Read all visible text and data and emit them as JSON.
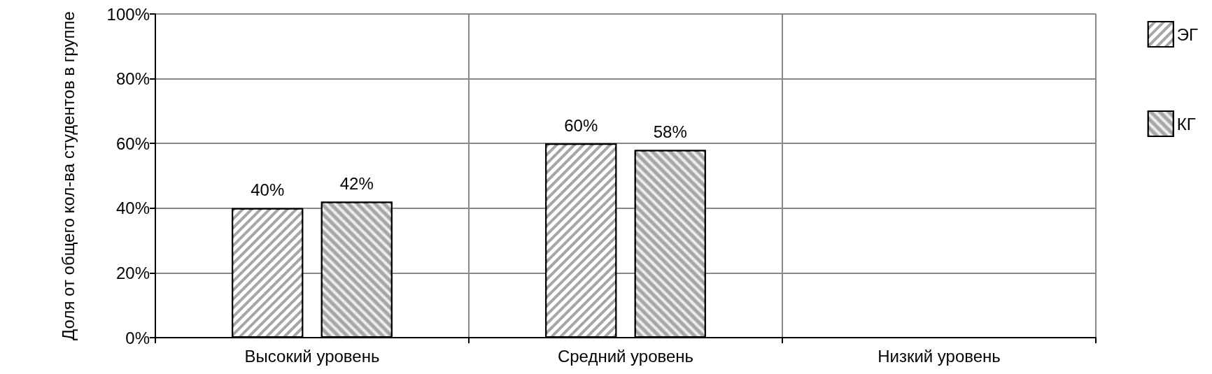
{
  "chart_data": {
    "type": "bar",
    "ylabel": "Доля от общего кол-ва студентов в группе",
    "categories": [
      "Высокий уровень",
      "Средний уровень",
      "Низкий уровень"
    ],
    "series": [
      {
        "name": "ЭГ",
        "color": "#a6a6a6",
        "values": [
          40,
          60,
          null
        ],
        "value_labels": [
          "40%",
          "60%",
          null
        ]
      },
      {
        "name": "КГ",
        "color": "#a6a6a6",
        "values": [
          42,
          58,
          null
        ],
        "value_labels": [
          "42%",
          "58%",
          null
        ]
      }
    ],
    "ylim": [
      0,
      100
    ],
    "yticks": [
      {
        "value": 0,
        "label": "0%"
      },
      {
        "value": 20,
        "label": "20%"
      },
      {
        "value": 40,
        "label": "40%"
      },
      {
        "value": 60,
        "label": "60%"
      },
      {
        "value": 80,
        "label": "80%"
      },
      {
        "value": 100,
        "label": "100%"
      }
    ],
    "grid": true,
    "legend": "right"
  }
}
